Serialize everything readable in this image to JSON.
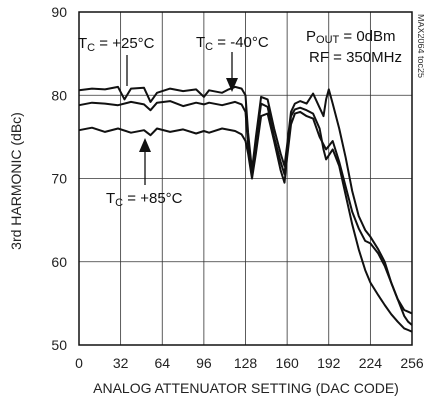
{
  "chart_data": {
    "type": "line",
    "title": "",
    "xlabel": "ANALOG ATTENUATOR SETTING (DAC CODE)",
    "ylabel": "3rd HARMONIC (dBc)",
    "xlim": [
      0,
      256
    ],
    "ylim": [
      50,
      90
    ],
    "xticks": [
      "0",
      "32",
      "64",
      "96",
      "128",
      "160",
      "192",
      "224",
      "256"
    ],
    "yticks": [
      "50",
      "60",
      "70",
      "80",
      "90"
    ],
    "grid": true,
    "figure_id": "MAX2064 toc25",
    "conditions": [
      {
        "text": "P",
        "sub": "OUT",
        "after": " = 0dBm"
      },
      {
        "text": "RF = 350MHz",
        "sub": "",
        "after": ""
      }
    ],
    "annotations": [
      {
        "prefix": "T",
        "sub": "C",
        "text": " = +25°C"
      },
      {
        "prefix": "T",
        "sub": "C",
        "text": " = -40°C"
      },
      {
        "prefix": "T",
        "sub": "C",
        "text": " = +85°C"
      }
    ],
    "series": [
      {
        "x": [
          0,
          10,
          20,
          30,
          35,
          40,
          50,
          55,
          60,
          70,
          80,
          90,
          96,
          100,
          110,
          115,
          120,
          125,
          128,
          130,
          133,
          136,
          140,
          145,
          150,
          155,
          158,
          160,
          163,
          166,
          170,
          175,
          180,
          185,
          188,
          190,
          192,
          195,
          200,
          205,
          210,
          215,
          220,
          224,
          230,
          235,
          240,
          245,
          250,
          253,
          256
        ],
        "values": [
          80.6,
          80.8,
          80.7,
          81.0,
          79.5,
          80.8,
          80.9,
          79.2,
          80.3,
          80.8,
          80.5,
          80.7,
          79.8,
          80.6,
          80.3,
          80.7,
          81.0,
          80.8,
          80.0,
          75.5,
          71.0,
          75.0,
          79.8,
          79.5,
          76.0,
          73.0,
          71.5,
          74.0,
          78.0,
          79.0,
          79.3,
          79.0,
          80.2,
          78.5,
          77.5,
          79.5,
          80.7,
          79.0,
          76.0,
          72.5,
          68.5,
          65.5,
          63.8,
          63.0,
          61.5,
          60.0,
          57.5,
          55.5,
          54.2,
          54.0,
          53.8
        ]
      },
      {
        "x": [
          0,
          10,
          20,
          30,
          40,
          50,
          55,
          60,
          70,
          80,
          90,
          96,
          100,
          110,
          120,
          125,
          128,
          130,
          133,
          136,
          140,
          145,
          150,
          155,
          158,
          160,
          163,
          166,
          170,
          175,
          180,
          185,
          188,
          190,
          195,
          200,
          205,
          210,
          215,
          220,
          224,
          230,
          235,
          240,
          245,
          250,
          253,
          256
        ],
        "values": [
          78.8,
          79.1,
          79.0,
          78.8,
          79.2,
          78.9,
          78.2,
          79.1,
          79.3,
          78.7,
          79.1,
          78.9,
          79.1,
          78.8,
          79.2,
          78.9,
          78.0,
          74.0,
          70.8,
          74.5,
          79.0,
          78.6,
          75.0,
          72.0,
          70.5,
          73.5,
          77.5,
          78.3,
          78.5,
          78.2,
          77.8,
          76.0,
          73.5,
          72.3,
          73.5,
          71.5,
          68.0,
          64.5,
          61.5,
          59.0,
          57.5,
          56.0,
          54.8,
          53.7,
          52.8,
          52.0,
          51.8,
          51.6
        ]
      },
      {
        "x": [
          0,
          10,
          20,
          30,
          40,
          50,
          55,
          60,
          70,
          80,
          90,
          96,
          100,
          110,
          120,
          125,
          128,
          130,
          133,
          136,
          140,
          145,
          150,
          155,
          158,
          160,
          163,
          166,
          170,
          175,
          180,
          185,
          190,
          195,
          200,
          205,
          210,
          215,
          220,
          224,
          230,
          235,
          240,
          245,
          250,
          253,
          256
        ],
        "values": [
          75.8,
          76.1,
          75.6,
          76.0,
          75.5,
          75.8,
          75.2,
          76.0,
          75.6,
          75.9,
          75.4,
          75.7,
          75.5,
          76.0,
          75.7,
          75.3,
          74.5,
          73.0,
          70.0,
          73.0,
          77.5,
          77.8,
          74.5,
          71.0,
          69.5,
          72.5,
          76.5,
          77.8,
          78.0,
          77.5,
          77.2,
          75.0,
          73.5,
          74.5,
          72.0,
          69.0,
          66.0,
          64.0,
          62.5,
          62.2,
          61.0,
          59.5,
          57.5,
          55.5,
          53.5,
          52.8,
          52.4
        ]
      }
    ]
  }
}
